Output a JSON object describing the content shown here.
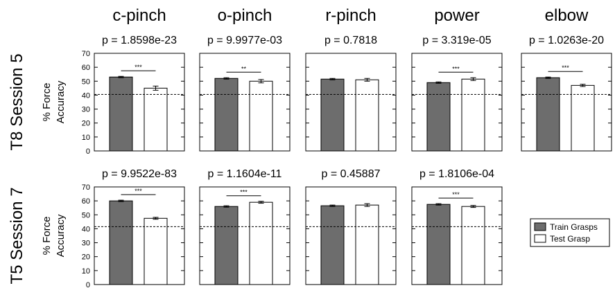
{
  "chart_data": {
    "type": "bar",
    "columns": [
      "c-pinch",
      "o-pinch",
      "r-pinch",
      "power",
      "elbow"
    ],
    "row_labels": [
      "T8 Session 5",
      "T5 Session 7"
    ],
    "ylabel_lines": [
      "% Force",
      "Accuracy"
    ],
    "ylim": [
      0,
      70
    ],
    "yticks": [
      "0",
      "10",
      "20",
      "30",
      "40",
      "50",
      "60",
      "70"
    ],
    "colors": {
      "train": "#6d6d6d",
      "test": "#ffffff"
    },
    "legend": {
      "position": "right",
      "entries": [
        "Train Grasps",
        "Test Grasp"
      ]
    },
    "panels": [
      {
        "row": 0,
        "col": 0,
        "p_label": "p = 1.8598e-23",
        "train": 53.0,
        "test": 45.0,
        "train_err": 0.5,
        "test_err": 1.5,
        "chance": 40.5,
        "stars": "***"
      },
      {
        "row": 0,
        "col": 1,
        "p_label": "p = 9.9977e-03",
        "train": 52.0,
        "test": 50.0,
        "train_err": 0.5,
        "test_err": 1.2,
        "chance": 40.5,
        "stars": "**"
      },
      {
        "row": 0,
        "col": 2,
        "p_label": "p = 0.7818",
        "train": 51.5,
        "test": 51.0,
        "train_err": 0.5,
        "test_err": 1.0,
        "chance": 40.5,
        "stars": ""
      },
      {
        "row": 0,
        "col": 3,
        "p_label": "p = 3.319e-05",
        "train": 49.0,
        "test": 51.5,
        "train_err": 0.5,
        "test_err": 1.0,
        "chance": 40.5,
        "stars": "***"
      },
      {
        "row": 0,
        "col": 4,
        "p_label": "p = 1.0263e-20",
        "train": 52.5,
        "test": 47.0,
        "train_err": 0.5,
        "test_err": 0.8,
        "chance": 40.5,
        "stars": "***"
      },
      {
        "row": 1,
        "col": 0,
        "p_label": "p = 9.9522e-83",
        "train": 60.0,
        "test": 47.5,
        "train_err": 0.5,
        "test_err": 0.7,
        "chance": 41.5,
        "stars": "***"
      },
      {
        "row": 1,
        "col": 1,
        "p_label": "p = 1.1604e-11",
        "train": 56.0,
        "test": 59.0,
        "train_err": 0.5,
        "test_err": 0.7,
        "chance": 41.5,
        "stars": "***"
      },
      {
        "row": 1,
        "col": 2,
        "p_label": "p = 0.45887",
        "train": 56.5,
        "test": 57.0,
        "train_err": 0.5,
        "test_err": 1.0,
        "chance": 41.5,
        "stars": ""
      },
      {
        "row": 1,
        "col": 3,
        "p_label": "p = 1.8106e-04",
        "train": 57.5,
        "test": 56.0,
        "train_err": 0.5,
        "test_err": 0.7,
        "chance": 41.5,
        "stars": "***"
      }
    ]
  }
}
